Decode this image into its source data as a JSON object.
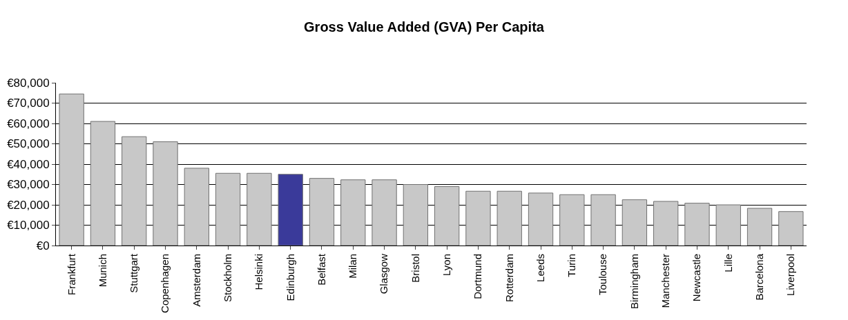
{
  "chart_data": {
    "type": "bar",
    "title": "Gross Value Added (GVA) Per Capita",
    "categories": [
      "Frankfurt",
      "Munich",
      "Stuttgart",
      "Copenhagen",
      "Amsterdam",
      "Stockholm",
      "Helsinki",
      "Edinburgh",
      "Belfast",
      "Milan",
      "Glasgow",
      "Bristol",
      "Lyon",
      "Dortmund",
      "Rotterdam",
      "Leeds",
      "Turin",
      "Toulouse",
      "Birmingham",
      "Manchester",
      "Newcastle",
      "Lille",
      "Barcelona",
      "Liverpool"
    ],
    "values": [
      74500,
      61000,
      53500,
      51000,
      38000,
      35500,
      35500,
      35000,
      33000,
      32300,
      32300,
      30000,
      29000,
      26700,
      26700,
      25800,
      25000,
      25000,
      22500,
      21700,
      20800,
      20000,
      18300,
      16700
    ],
    "colors": [
      "#c8c8c8",
      "#c8c8c8",
      "#c8c8c8",
      "#c8c8c8",
      "#c8c8c8",
      "#c8c8c8",
      "#c8c8c8",
      "#3a3a9a",
      "#c8c8c8",
      "#c8c8c8",
      "#c8c8c8",
      "#c8c8c8",
      "#c8c8c8",
      "#c8c8c8",
      "#c8c8c8",
      "#c8c8c8",
      "#c8c8c8",
      "#c8c8c8",
      "#c8c8c8",
      "#c8c8c8",
      "#c8c8c8",
      "#c8c8c8",
      "#c8c8c8",
      "#c8c8c8"
    ],
    "ylim": [
      0,
      80000
    ],
    "yticks": [
      {
        "value": 0,
        "label": "€0"
      },
      {
        "value": 10000,
        "label": "€10,000"
      },
      {
        "value": 20000,
        "label": "€20,000"
      },
      {
        "value": 30000,
        "label": "€30,000"
      },
      {
        "value": 40000,
        "label": "€40,000"
      },
      {
        "value": 50000,
        "label": "€50,000"
      },
      {
        "value": 60000,
        "label": "€60,000"
      },
      {
        "value": 70000,
        "label": "€70,000"
      },
      {
        "value": 80000,
        "label": "€80,000"
      }
    ],
    "grid": "y"
  }
}
